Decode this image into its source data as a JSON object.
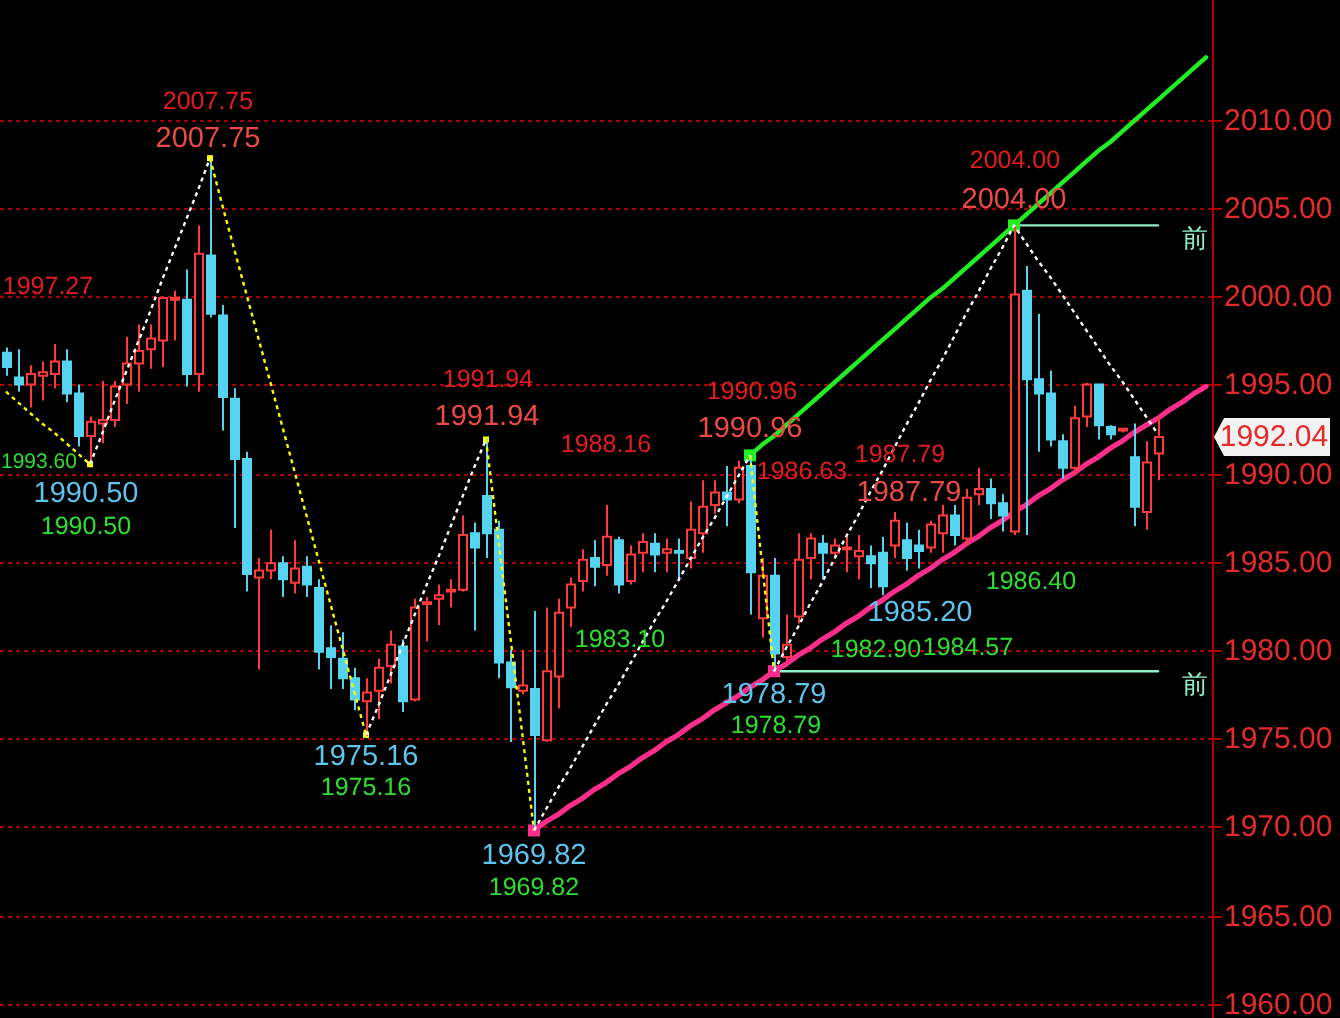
{
  "chart_data": {
    "type": "candlestick",
    "tick_labels": "y",
    "grid": "y",
    "categories": [
      null,
      null,
      null,
      null,
      null,
      null,
      null,
      null,
      null,
      null,
      null,
      null,
      null,
      null,
      null,
      null,
      null,
      null,
      null,
      null,
      null,
      null,
      null,
      null,
      null,
      null,
      null,
      null,
      null,
      null,
      null,
      null,
      null,
      null,
      null,
      null,
      null,
      null,
      null,
      null,
      null,
      null,
      null,
      null,
      null,
      null,
      null,
      null,
      null,
      null,
      null,
      null,
      null,
      null,
      null,
      null,
      null,
      null,
      null,
      null,
      null,
      null,
      null,
      null,
      null,
      null,
      null,
      null,
      null,
      null,
      null,
      null,
      null,
      null,
      null,
      null,
      null,
      null,
      null,
      null,
      null,
      null,
      null,
      null,
      null,
      null,
      null,
      null,
      null,
      null,
      null,
      null,
      null,
      null,
      null,
      null,
      null,
      null,
      null,
      null,
      null
    ],
    "ohlc": [
      [
        1996.8,
        1997.1,
        1995.5,
        1996.0
      ],
      [
        1995.4,
        1997.0,
        1994.6,
        1995.0
      ],
      [
        1995.0,
        1996.1,
        1993.7,
        1995.6
      ],
      [
        1995.5,
        1996.3,
        1994.1,
        1995.7
      ],
      [
        1995.6,
        1997.3,
        1994.8,
        1996.3
      ],
      [
        1996.3,
        1997.0,
        1994.0,
        1994.5
      ],
      [
        1994.5,
        1995.0,
        1991.5,
        1992.1
      ],
      [
        1992.1,
        1993.2,
        1990.5,
        1992.9
      ],
      [
        1992.8,
        1995.2,
        1991.7,
        1993.0
      ],
      [
        1993.0,
        1995.2,
        1992.6,
        1994.9
      ],
      [
        1995.0,
        1997.7,
        1993.9,
        1996.2
      ],
      [
        1996.2,
        1998.4,
        1994.6,
        1996.9
      ],
      [
        1997.0,
        1998.4,
        1995.9,
        1997.6
      ],
      [
        1997.5,
        2000.0,
        1996.0,
        1999.9
      ],
      [
        1999.8,
        2000.3,
        1997.5,
        1999.9
      ],
      [
        1999.8,
        2001.5,
        1994.9,
        1995.6
      ],
      [
        1995.6,
        2004.0,
        1994.6,
        2002.4
      ],
      [
        2002.3,
        2007.75,
        1998.8,
        1999.0
      ],
      [
        1998.9,
        1999.5,
        1992.4,
        1994.3
      ],
      [
        1994.2,
        1994.8,
        1986.9,
        1990.8
      ],
      [
        1990.8,
        1991.2,
        1983.3,
        1984.3
      ],
      [
        1984.1,
        1985.2,
        1978.9,
        1984.5
      ],
      [
        1984.5,
        1986.8,
        1984.0,
        1984.9
      ],
      [
        1984.9,
        1985.3,
        1983.0,
        1984.0
      ],
      [
        1983.8,
        1986.2,
        1983.2,
        1984.6
      ],
      [
        1984.7,
        1985.3,
        1983.0,
        1983.7
      ],
      [
        1983.5,
        1984.0,
        1978.9,
        1979.9
      ],
      [
        1980.1,
        1981.4,
        1977.8,
        1979.6
      ],
      [
        1979.5,
        1981.0,
        1977.8,
        1978.4
      ],
      [
        1978.4,
        1979.0,
        1976.6,
        1977.2
      ],
      [
        1977.1,
        1978.4,
        1975.16,
        1977.6
      ],
      [
        1977.7,
        1979.5,
        1976.1,
        1979.0
      ],
      [
        1979.1,
        1981.1,
        1978.1,
        1980.3
      ],
      [
        1980.2,
        1980.6,
        1976.5,
        1977.1
      ],
      [
        1977.2,
        1982.9,
        1977.1,
        1982.4
      ],
      [
        1982.6,
        1983.0,
        1980.5,
        1982.7
      ],
      [
        1982.9,
        1983.7,
        1981.4,
        1983.1
      ],
      [
        1983.3,
        1984.0,
        1982.4,
        1983.4
      ],
      [
        1983.4,
        1987.6,
        1983.3,
        1986.5
      ],
      [
        1986.6,
        1987.2,
        1981.1,
        1985.8
      ],
      [
        1988.7,
        1991.94,
        1985.2,
        1986.6
      ],
      [
        1986.8,
        1987.3,
        1978.4,
        1979.3
      ],
      [
        1979.3,
        1980.0,
        1974.8,
        1977.9
      ],
      [
        1977.7,
        1980.0,
        1977.5,
        1978.0
      ],
      [
        1977.8,
        1982.2,
        1969.82,
        1975.2
      ],
      [
        1974.9,
        1982.4,
        1974.8,
        1978.8
      ],
      [
        1978.5,
        1982.9,
        1976.7,
        1982.1
      ],
      [
        1982.4,
        1984.1,
        1981.3,
        1983.7
      ],
      [
        1983.9,
        1985.7,
        1983.3,
        1985.1
      ],
      [
        1985.2,
        1986.2,
        1983.6,
        1984.7
      ],
      [
        1984.8,
        1988.2,
        1984.2,
        1986.4
      ],
      [
        1986.2,
        1986.4,
        1983.2,
        1983.7
      ],
      [
        1983.9,
        1985.9,
        1983.7,
        1985.4
      ],
      [
        1985.5,
        1986.6,
        1984.4,
        1986.1
      ],
      [
        1986.0,
        1986.6,
        1984.4,
        1985.4
      ],
      [
        1985.5,
        1986.3,
        1984.4,
        1985.7
      ],
      [
        1985.6,
        1986.3,
        1983.9,
        1985.5
      ],
      [
        1985.2,
        1988.4,
        1984.6,
        1986.8
      ],
      [
        1986.6,
        1989.6,
        1985.5,
        1988.1
      ],
      [
        1988.2,
        1989.6,
        1987.7,
        1988.9
      ],
      [
        1988.9,
        1990.4,
        1987.0,
        1988.5
      ],
      [
        1988.5,
        1990.7,
        1988.3,
        1990.3
      ],
      [
        1990.4,
        1990.96,
        1982.0,
        1984.4
      ],
      [
        1981.8,
        1985.2,
        1980.7,
        1984.2
      ],
      [
        1984.2,
        1985.2,
        1978.79,
        1979.8
      ],
      [
        1979.6,
        1982.0,
        1979.3,
        1980.3
      ],
      [
        1981.9,
        1986.6,
        1981.5,
        1985.1
      ],
      [
        1985.2,
        1986.6,
        1984.0,
        1986.3
      ],
      [
        1986.0,
        1986.5,
        1984.0,
        1985.5
      ],
      [
        1985.5,
        1986.3,
        1985.2,
        1985.9
      ],
      [
        1985.7,
        1986.6,
        1984.4,
        1985.8
      ],
      [
        1985.3,
        1986.5,
        1984.0,
        1985.6
      ],
      [
        1985.3,
        1985.9,
        1983.5,
        1984.9
      ],
      [
        1985.5,
        1986.4,
        1983.1,
        1983.6
      ],
      [
        1985.9,
        1987.8,
        1985.2,
        1987.3
      ],
      [
        1986.2,
        1987.2,
        1984.5,
        1985.2
      ],
      [
        1985.9,
        1986.8,
        1984.6,
        1985.6
      ],
      [
        1985.8,
        1987.3,
        1985.5,
        1987.1
      ],
      [
        1986.6,
        1988.2,
        1985.5,
        1987.6
      ],
      [
        1987.6,
        1988.2,
        1985.9,
        1986.5
      ],
      [
        1986.3,
        1989.1,
        1985.9,
        1988.6
      ],
      [
        1988.8,
        1990.3,
        1988.2,
        1989.1
      ],
      [
        1989.1,
        1989.7,
        1987.4,
        1988.3
      ],
      [
        1988.3,
        1988.8,
        1986.7,
        1987.6
      ],
      [
        1986.7,
        2004.0,
        1986.5,
        2000.1
      ],
      [
        2000.3,
        2001.7,
        1986.5,
        1995.3
      ],
      [
        1995.3,
        1999.0,
        1991.2,
        1994.5
      ],
      [
        1994.5,
        1995.8,
        1991.5,
        1991.9
      ],
      [
        1991.8,
        1992.2,
        1989.7,
        1990.3
      ],
      [
        1990.3,
        1993.8,
        1989.9,
        1993.1
      ],
      [
        1993.2,
        1995.1,
        1992.6,
        1995.0
      ],
      [
        1995.0,
        1995.0,
        1991.9,
        1992.7
      ],
      [
        1992.6,
        1992.7,
        1991.9,
        1992.2
      ],
      [
        1992.4,
        1992.5,
        1992.3,
        1992.5
      ],
      [
        1990.9,
        1992.8,
        1987.0,
        1988.1
      ],
      [
        1987.8,
        1991.8,
        1986.8,
        1990.6
      ],
      [
        1991.1,
        1993.2,
        1989.6,
        1992.04
      ],
      null,
      null,
      null,
      null
    ],
    "colors": [
      "#57d3f2",
      "#57d3f2",
      "#ff3b3b",
      "#ff3b3b",
      "#ff3b3b",
      "#57d3f2",
      "#57d3f2",
      "#ff3b3b",
      "#ff3b3b",
      "#ff3b3b",
      "#ff3b3b",
      "#ff3b3b",
      "#ff3b3b",
      "#ff3b3b",
      "#ff3b3b",
      "#57d3f2",
      "#ff3b3b",
      "#57d3f2",
      "#57d3f2",
      "#57d3f2",
      "#57d3f2",
      "#ff3b3b",
      "#ff3b3b",
      "#57d3f2",
      "#ff3b3b",
      "#57d3f2",
      "#57d3f2",
      "#57d3f2",
      "#57d3f2",
      "#57d3f2",
      "#ff3b3b",
      "#ff3b3b",
      "#ff3b3b",
      "#57d3f2",
      "#ff3b3b",
      "#ff3b3b",
      "#ff3b3b",
      "#ff3b3b",
      "#ff3b3b",
      "#57d3f2",
      "#57d3f2",
      "#57d3f2",
      "#57d3f2",
      "#ff3b3b",
      "#57d3f2",
      "#ff3b3b",
      "#ff3b3b",
      "#ff3b3b",
      "#ff3b3b",
      "#57d3f2",
      "#ff3b3b",
      "#57d3f2",
      "#ff3b3b",
      "#ff3b3b",
      "#57d3f2",
      "#ff3b3b",
      "#57d3f2",
      "#ff3b3b",
      "#ff3b3b",
      "#ff3b3b",
      "#57d3f2",
      "#ff3b3b",
      "#57d3f2",
      "#ff3b3b",
      "#57d3f2",
      "#ff3b3b",
      "#ff3b3b",
      "#ff3b3b",
      "#57d3f2",
      "#ff3b3b",
      "#ff3b3b",
      "#ff3b3b",
      "#57d3f2",
      "#57d3f2",
      "#ff3b3b",
      "#57d3f2",
      "#57d3f2",
      "#ff3b3b",
      "#ff3b3b",
      "#57d3f2",
      "#ff3b3b",
      "#ff3b3b",
      "#57d3f2",
      "#57d3f2",
      "#ff3b3b",
      "#57d3f2",
      "#57d3f2",
      "#57d3f2",
      "#57d3f2",
      "#ff3b3b",
      "#ff3b3b",
      "#57d3f2",
      "#57d3f2",
      "#ff3b3b",
      "#57d3f2",
      "#ff3b3b",
      "#ff3b3b",
      null,
      null,
      null,
      null
    ],
    "ylim": [
      1959.2,
      2016.74
    ],
    "yticks": [
      {
        "value": 1960,
        "label": "1960.00"
      },
      {
        "value": 1965,
        "label": "1965.00"
      },
      {
        "value": 1970,
        "label": "1970.00"
      },
      {
        "value": 1975,
        "label": "1975.00"
      },
      {
        "value": 1980,
        "label": "1980.00"
      },
      {
        "value": 1985,
        "label": "1985.00"
      },
      {
        "value": 1990,
        "label": "1990.00"
      },
      {
        "value": 1995,
        "label": "1995.00"
      },
      {
        "value": 2000,
        "label": "2000.00"
      },
      {
        "value": 2005,
        "label": "2005.00"
      },
      {
        "value": 2010,
        "label": "2010.00"
      }
    ],
    "series": [
      {
        "type": "line",
        "color": "#ffff00",
        "line_style": "dashed",
        "values": [
          1994.6,
          1994.0,
          1993.4,
          1992.8,
          1992.3,
          1991.7,
          1991.1,
          1990.5,
          null,
          null,
          null,
          null,
          null,
          null,
          null,
          null,
          null,
          2007.8,
          2005.2,
          2002.7,
          2000.2,
          1997.7,
          1995.2,
          1992.7,
          1990.2,
          1987.7,
          1985.2,
          1982.7,
          1980.2,
          1977.7,
          1975.2,
          null,
          null,
          null,
          null,
          null,
          null,
          null,
          null,
          null,
          1991.9,
          1986.4,
          1980.9,
          1975.4,
          1969.8,
          null,
          null,
          null,
          null,
          null,
          null,
          null,
          null,
          null,
          null,
          null,
          null,
          null,
          null,
          null,
          null,
          null,
          1991.0,
          1984.9,
          1978.8,
          null,
          null,
          null,
          null,
          null,
          null,
          null,
          null,
          null,
          null,
          null,
          null,
          null,
          null,
          null,
          null,
          null,
          null,
          null,
          null,
          null,
          null,
          null,
          null,
          null,
          null,
          null,
          null,
          null,
          null,
          null,
          null,
          null,
          null,
          null,
          null
        ]
      },
      {
        "type": "line",
        "color": "#ffffff",
        "line_style": "dashed",
        "values": [
          null,
          null,
          null,
          null,
          null,
          null,
          null,
          1990.5,
          1992.2,
          1994.0,
          1995.7,
          1997.4,
          1999.1,
          2000.9,
          2002.6,
          2004.3,
          2006.0,
          2007.8,
          null,
          null,
          null,
          null,
          null,
          null,
          null,
          null,
          null,
          null,
          null,
          null,
          1975.2,
          1976.8,
          1978.5,
          1980.2,
          1981.9,
          1983.6,
          1985.2,
          1986.9,
          1988.6,
          1990.3,
          1991.9,
          null,
          null,
          null,
          1969.8,
          1971.0,
          1972.2,
          1973.3,
          1974.5,
          1975.7,
          1976.9,
          1978.0,
          1979.2,
          1980.4,
          1981.6,
          1982.7,
          1983.9,
          1985.1,
          1986.3,
          1987.4,
          1988.6,
          1989.8,
          1991.0,
          null,
          1978.8,
          1980.1,
          1981.3,
          1982.6,
          1983.8,
          1985.1,
          1986.4,
          1987.6,
          1988.9,
          1990.1,
          1991.4,
          1992.7,
          1993.9,
          1995.2,
          1996.4,
          1997.7,
          1999.0,
          2000.2,
          2001.5,
          2002.7,
          2004.0,
          2003.0,
          2002.0,
          2001.1,
          2000.1,
          1999.1,
          1998.1,
          1997.1,
          1996.1,
          1995.2,
          1994.2,
          1993.2,
          1992.2,
          null,
          null,
          null,
          null
        ]
      },
      {
        "type": "line",
        "color": "#22ee22",
        "values": [
          null,
          null,
          null,
          null,
          null,
          null,
          null,
          null,
          null,
          null,
          null,
          null,
          null,
          null,
          null,
          null,
          null,
          null,
          null,
          null,
          null,
          null,
          null,
          null,
          null,
          null,
          null,
          null,
          null,
          null,
          null,
          null,
          null,
          null,
          null,
          null,
          null,
          null,
          null,
          null,
          null,
          null,
          null,
          null,
          null,
          null,
          null,
          null,
          null,
          null,
          null,
          null,
          null,
          null,
          null,
          null,
          null,
          null,
          null,
          null,
          null,
          null,
          1991.0,
          1991.6,
          1992.1,
          1992.7,
          1993.3,
          1993.9,
          1994.5,
          1995.1,
          1995.7,
          1996.3,
          1996.9,
          1997.5,
          1998.1,
          1998.7,
          1999.3,
          1999.9,
          2000.4,
          2001.0,
          2001.6,
          2002.2,
          2002.8,
          2003.4,
          2004.0,
          2004.6,
          2005.2,
          2005.8,
          2006.4,
          2007.0,
          2007.6,
          2008.2,
          2008.7,
          2009.3,
          2009.9,
          2010.5,
          2011.1,
          2011.7,
          2012.3,
          2012.9,
          2013.5
        ]
      },
      {
        "type": "line",
        "color": "#ff2d8c",
        "values": [
          null,
          null,
          null,
          null,
          null,
          null,
          null,
          null,
          null,
          null,
          null,
          null,
          null,
          null,
          null,
          null,
          null,
          null,
          null,
          null,
          null,
          null,
          null,
          null,
          null,
          null,
          null,
          null,
          null,
          null,
          null,
          null,
          null,
          null,
          null,
          null,
          null,
          null,
          null,
          null,
          null,
          null,
          null,
          null,
          1969.8,
          1970.3,
          1970.7,
          1971.2,
          1971.6,
          1972.1,
          1972.5,
          1973.0,
          1973.4,
          1973.9,
          1974.3,
          1974.8,
          1975.2,
          1975.7,
          1976.1,
          1976.6,
          1977.0,
          1977.4,
          1977.9,
          1978.3,
          1978.8,
          1979.2,
          1979.7,
          1980.1,
          1980.6,
          1981.0,
          1981.5,
          1981.9,
          1982.4,
          1982.8,
          1983.3,
          1983.7,
          1984.2,
          1984.6,
          1985.1,
          1985.5,
          1986.0,
          1986.4,
          1986.9,
          1987.3,
          1987.8,
          1988.2,
          1988.7,
          1989.1,
          1989.6,
          1990.0,
          1990.5,
          1990.9,
          1991.4,
          1991.8,
          1992.3,
          1992.7,
          1993.1,
          1993.6,
          1994.0,
          1994.5,
          1994.9
        ]
      },
      {
        "type": "line",
        "name": "前",
        "color": "#90f0c8",
        "values": [
          null,
          null,
          null,
          null,
          null,
          null,
          null,
          null,
          null,
          null,
          null,
          null,
          null,
          null,
          null,
          null,
          null,
          null,
          null,
          null,
          null,
          null,
          null,
          null,
          null,
          null,
          null,
          null,
          null,
          null,
          null,
          null,
          null,
          null,
          null,
          null,
          null,
          null,
          null,
          null,
          null,
          null,
          null,
          null,
          null,
          null,
          null,
          null,
          null,
          null,
          null,
          null,
          null,
          null,
          null,
          null,
          null,
          null,
          null,
          null,
          null,
          null,
          null,
          null,
          null,
          null,
          null,
          null,
          null,
          null,
          null,
          null,
          null,
          null,
          null,
          null,
          null,
          null,
          null,
          null,
          null,
          null,
          null,
          null,
          2004.0,
          2004.0,
          2004.0,
          2004.0,
          2004.0,
          2004.0,
          2004.0,
          2004.0,
          2004.0,
          2004.0,
          2004.0,
          2004.0,
          2004.0,
          null,
          null,
          null,
          null
        ]
      },
      {
        "type": "line",
        "name": "前",
        "color": "#90f0c8",
        "values": [
          null,
          null,
          null,
          null,
          null,
          null,
          null,
          null,
          null,
          null,
          null,
          null,
          null,
          null,
          null,
          null,
          null,
          null,
          null,
          null,
          null,
          null,
          null,
          null,
          null,
          null,
          null,
          null,
          null,
          null,
          null,
          null,
          null,
          null,
          null,
          null,
          null,
          null,
          null,
          null,
          null,
          null,
          null,
          null,
          null,
          null,
          null,
          null,
          null,
          null,
          null,
          null,
          null,
          null,
          null,
          null,
          null,
          null,
          null,
          null,
          null,
          null,
          null,
          null,
          1978.8,
          1978.8,
          1978.8,
          1978.8,
          1978.8,
          1978.8,
          1978.8,
          1978.8,
          1978.8,
          1978.8,
          1978.8,
          1978.8,
          1978.8,
          1978.8,
          1978.8,
          1978.8,
          1978.8,
          1978.8,
          1978.8,
          1978.8,
          1978.8,
          1978.8,
          1978.8,
          1978.8,
          1978.8,
          1978.8,
          1978.8,
          1978.8,
          1978.8,
          1978.8,
          1978.8,
          1978.8,
          1978.8,
          null,
          null,
          null,
          null
        ]
      },
      {
        "type": "scatter",
        "color": "#ffff00",
        "marker": "square",
        "values": [
          null,
          null,
          null,
          null,
          null,
          null,
          null,
          1990.5,
          null,
          null,
          null,
          null,
          null,
          null,
          null,
          null,
          null,
          2007.8,
          null,
          null,
          null,
          null,
          null,
          null,
          null,
          null,
          null,
          null,
          null,
          null,
          1975.2,
          null,
          null,
          null,
          null,
          null,
          null,
          null,
          null,
          null,
          1991.9,
          null,
          null,
          null,
          null,
          null,
          null,
          null,
          null,
          null,
          null,
          null,
          null,
          null,
          null,
          null,
          null,
          null,
          null,
          null,
          null,
          null,
          null,
          null,
          null,
          null,
          null,
          null,
          null,
          null,
          null,
          null,
          null,
          null,
          null,
          null,
          null,
          null,
          null,
          null,
          null,
          null,
          null,
          null,
          null,
          null,
          null,
          null,
          null,
          null,
          null,
          null,
          null,
          null,
          null,
          null,
          null,
          null,
          null,
          null,
          null
        ]
      },
      {
        "type": "scatter",
        "color": "#22ee22",
        "marker": "square",
        "values": [
          null,
          null,
          null,
          null,
          null,
          null,
          null,
          null,
          null,
          null,
          null,
          null,
          null,
          null,
          null,
          null,
          null,
          null,
          null,
          null,
          null,
          null,
          null,
          null,
          null,
          null,
          null,
          null,
          null,
          null,
          null,
          null,
          null,
          null,
          null,
          null,
          null,
          null,
          null,
          null,
          null,
          null,
          null,
          null,
          null,
          null,
          null,
          null,
          null,
          null,
          null,
          null,
          null,
          null,
          null,
          null,
          null,
          null,
          null,
          null,
          null,
          null,
          1991.0,
          null,
          null,
          null,
          null,
          null,
          null,
          null,
          null,
          null,
          null,
          null,
          null,
          null,
          null,
          null,
          null,
          null,
          null,
          null,
          null,
          null,
          2004.0,
          null,
          null,
          null,
          null,
          null,
          null,
          null,
          null,
          null,
          null,
          null,
          null,
          null,
          null,
          null,
          null
        ]
      },
      {
        "type": "scatter",
        "color": "#ff2d8c",
        "marker": "square",
        "values": [
          null,
          null,
          null,
          null,
          null,
          null,
          null,
          null,
          null,
          null,
          null,
          null,
          null,
          null,
          null,
          null,
          null,
          null,
          null,
          null,
          null,
          null,
          null,
          null,
          null,
          null,
          null,
          null,
          null,
          null,
          null,
          null,
          null,
          null,
          null,
          null,
          null,
          null,
          null,
          null,
          null,
          null,
          null,
          null,
          1969.8,
          null,
          null,
          null,
          null,
          null,
          null,
          null,
          null,
          null,
          null,
          null,
          null,
          null,
          null,
          null,
          null,
          null,
          null,
          null,
          1978.8,
          null,
          null,
          null,
          null,
          null,
          null,
          null,
          null,
          null,
          null,
          null,
          null,
          null,
          null,
          null,
          null,
          null,
          null,
          null,
          null,
          null,
          null,
          null,
          null,
          null,
          null,
          null,
          null,
          null,
          null,
          null,
          null,
          null,
          null,
          null,
          null
        ]
      }
    ],
    "annotations": [
      "2007.75",
      "2007.75",
      "1997.27",
      "1993.60",
      "1990.50",
      "1990.50",
      "1975.16",
      "1975.16",
      "1991.94",
      "1991.94",
      "1988.16",
      "1983.10",
      "1969.82",
      "1969.82",
      "1990.96",
      "1990.96",
      "1986.63",
      "1978.79",
      "1978.79",
      "1987.79",
      "1987.79",
      "1985.20",
      "1982.90",
      "1984.57",
      "1986.40",
      "2004.00",
      "2004.00",
      "1992.04"
    ]
  }
}
